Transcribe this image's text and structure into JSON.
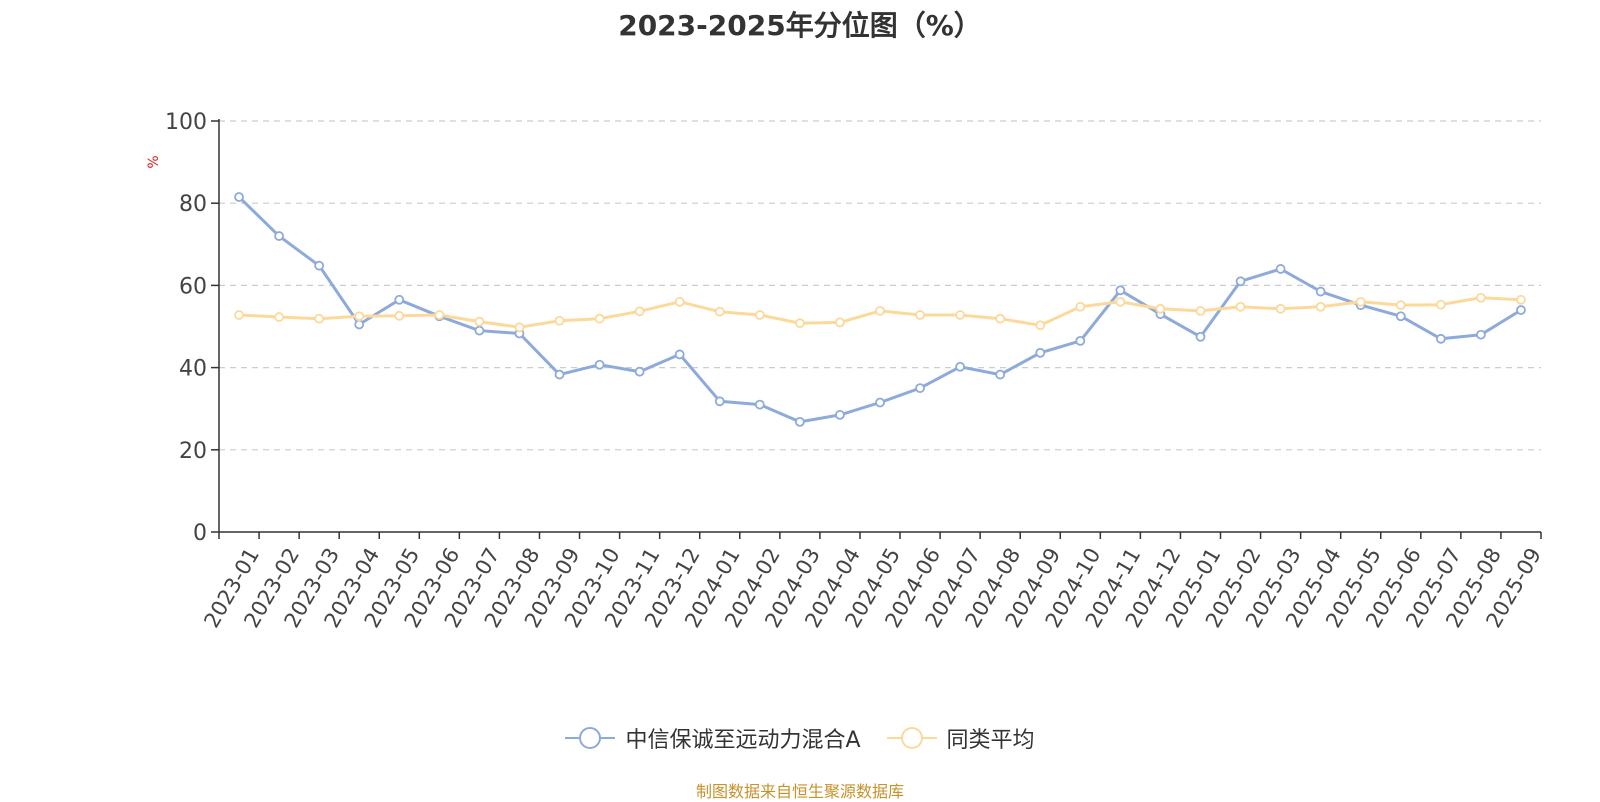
{
  "chart_data": {
    "type": "line",
    "title": "2023-2025年分位图（%）",
    "ylabel": "%",
    "xlabel": "",
    "ylim": [
      0,
      100
    ],
    "yticks": [
      0,
      20,
      40,
      60,
      80,
      100
    ],
    "grid": true,
    "legend_position": "bottom",
    "categories": [
      "2023-01",
      "2023-02",
      "2023-03",
      "2023-04",
      "2023-05",
      "2023-06",
      "2023-07",
      "2023-08",
      "2023-09",
      "2023-10",
      "2023-11",
      "2023-12",
      "2024-01",
      "2024-02",
      "2024-03",
      "2024-04",
      "2024-05",
      "2024-06",
      "2024-07",
      "2024-08",
      "2024-09",
      "2024-10",
      "2024-11",
      "2024-12",
      "2025-01",
      "2025-02",
      "2025-03",
      "2025-04",
      "2025-05",
      "2025-06",
      "2025-07",
      "2025-08",
      "2025-09"
    ],
    "series": [
      {
        "name": "中信保诚至远动力混合A",
        "color": "#8eaadb",
        "values": [
          81.5,
          72,
          64.8,
          50.5,
          56.5,
          52.5,
          49,
          48.3,
          38.3,
          40.7,
          39,
          43.2,
          31.8,
          31,
          26.8,
          28.5,
          31.5,
          35,
          40.2,
          38.3,
          43.6,
          46.5,
          58.8,
          53,
          47.5,
          61,
          64,
          58.5,
          55.2,
          52.5,
          47,
          48,
          54
        ]
      },
      {
        "name": "同类平均",
        "color": "#fcd99a",
        "values": [
          52.8,
          52.3,
          51.9,
          52.5,
          52.6,
          52.8,
          51.2,
          49.8,
          51.4,
          51.9,
          53.7,
          56,
          53.6,
          52.8,
          50.8,
          51,
          53.8,
          52.8,
          52.8,
          51.9,
          50.3,
          54.8,
          56,
          54.3,
          53.8,
          54.8,
          54.3,
          54.8,
          56,
          55.2,
          55.3,
          57,
          56.5
        ]
      }
    ]
  },
  "source_note": "制图数据来自恒生聚源数据库"
}
